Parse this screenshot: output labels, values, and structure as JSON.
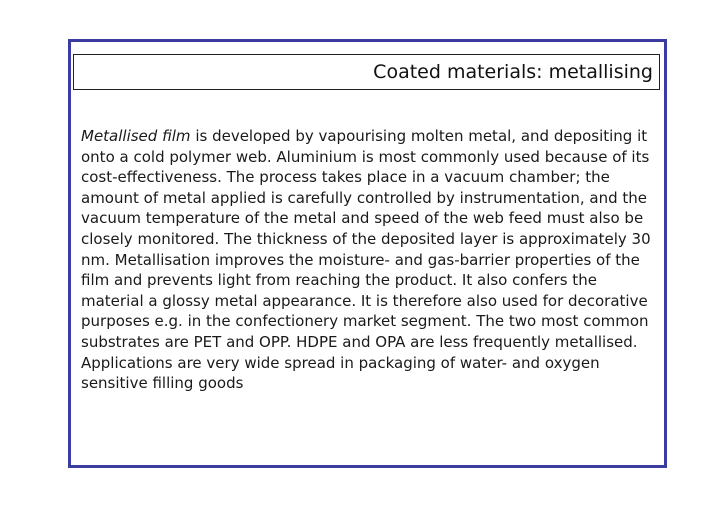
{
  "slide": {
    "title": "Coated materials: metallising",
    "body_term": "Metallised film",
    "body_text": " is developed by vapourising molten metal, and depositing it onto a cold polymer web. Aluminium is most commonly used because of its cost-effectiveness. The process takes place in a vacuum chamber; the amount of metal applied is carefully controlled by instrumentation, and the vacuum temperature of the metal and speed of the web feed must also be closely monitored. The thickness of the deposited layer is approximately 30 nm. Metallisation improves the moisture- and gas-barrier properties of the film and prevents light from reaching the product. It also confers the material a glossy metal appearance. It is therefore also used for decorative purposes e.g. in the confectionery market segment. The two most common substrates are PET and OPP. HDPE and OPA are less frequently metallised. Applications are very wide spread in packaging of water- and oxygen sensitive filling goods"
  },
  "colors": {
    "frame_border": "#3b3ba0",
    "title_border": "#222222",
    "text": "#1a1a1a",
    "background": "#ffffff"
  }
}
